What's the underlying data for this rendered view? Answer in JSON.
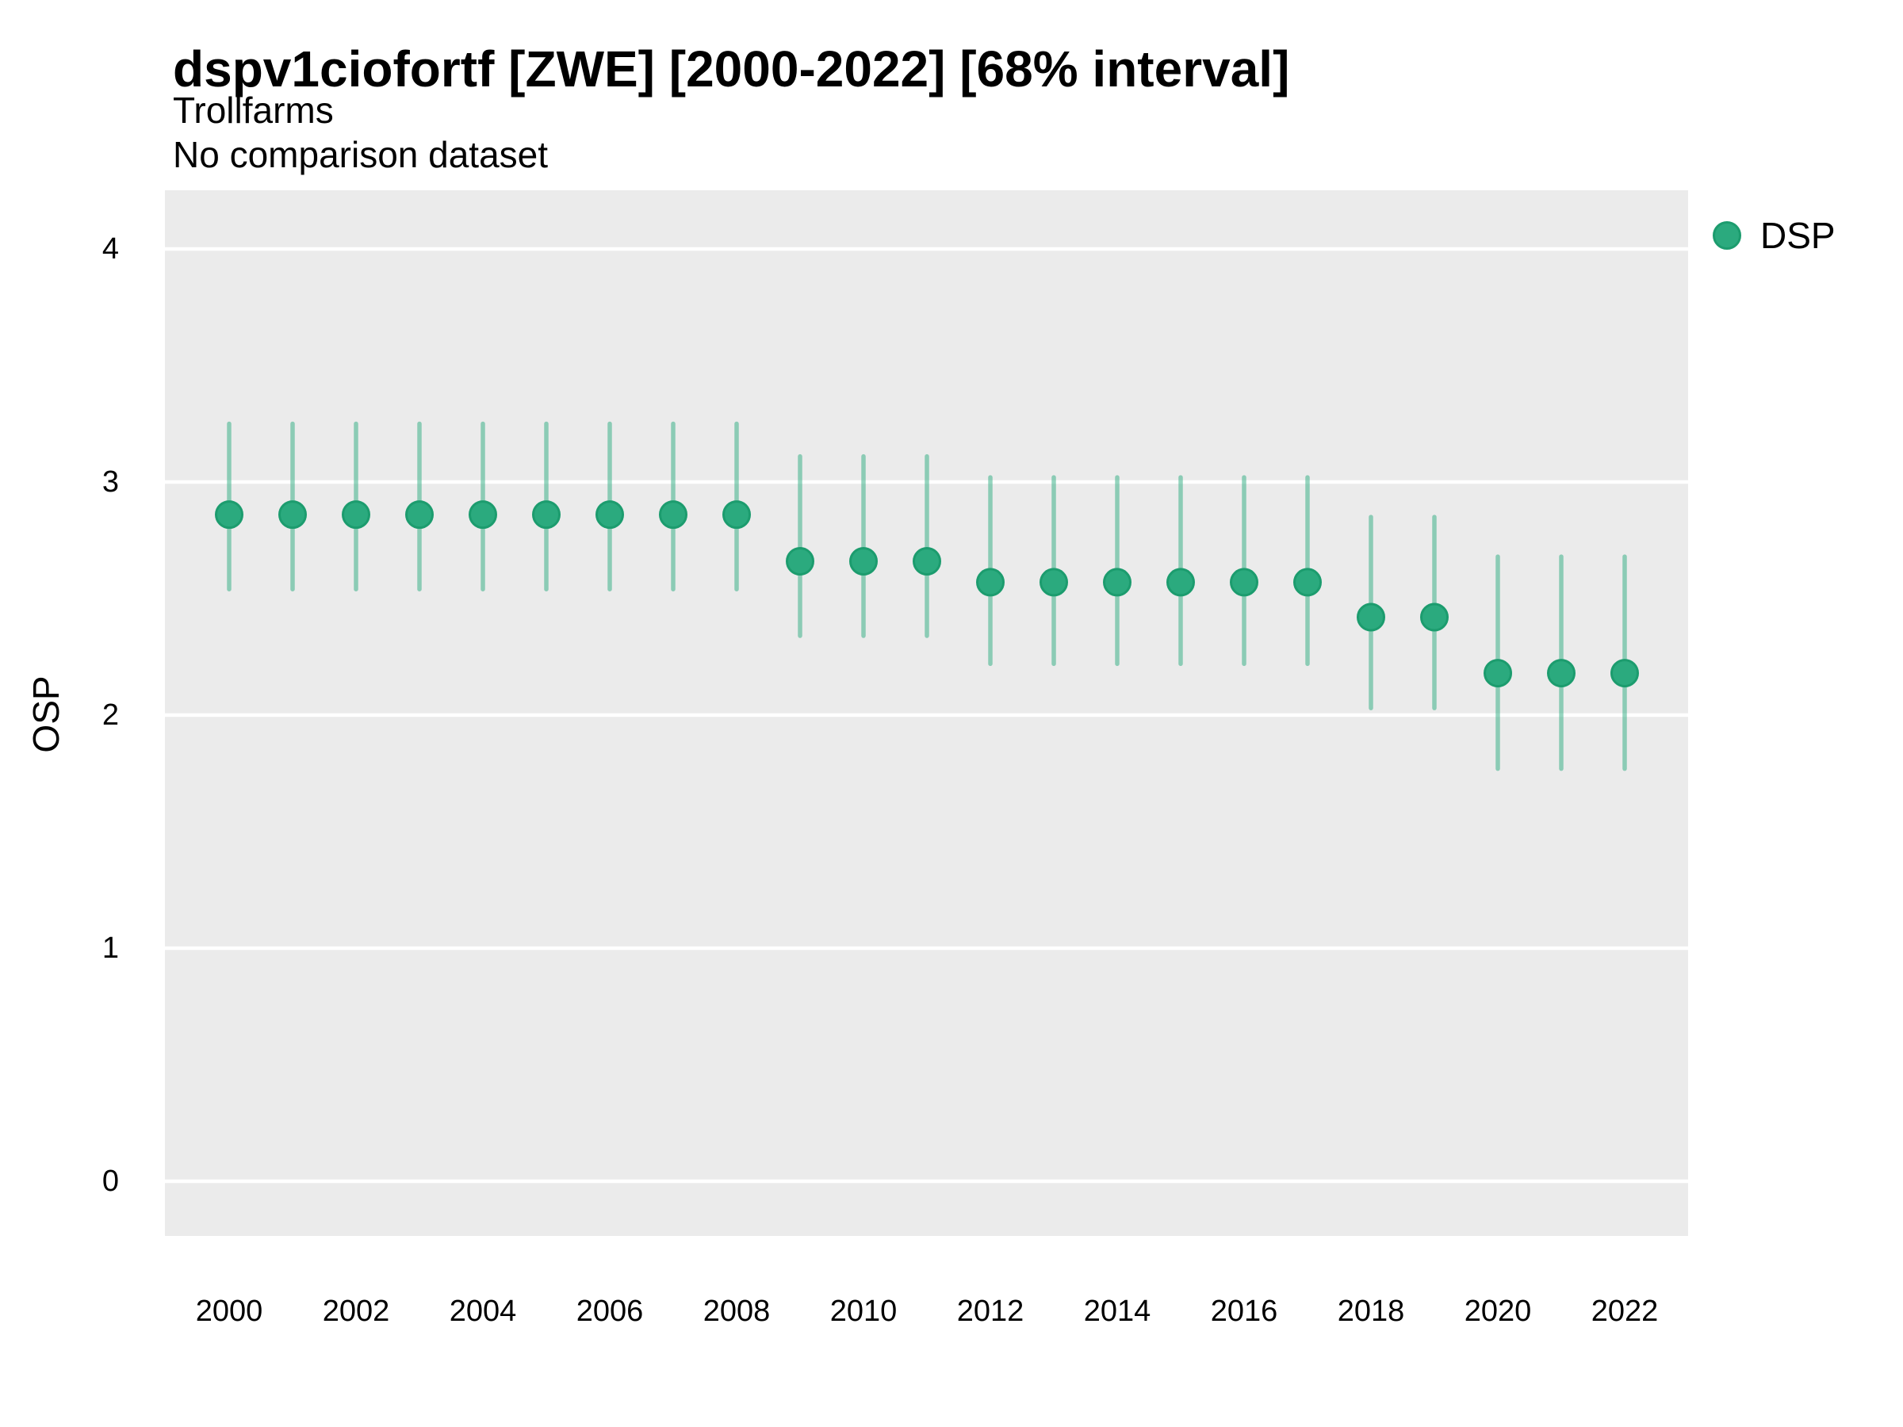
{
  "header": {
    "title": "dspv1ciofortf [ZWE] [2000-2022] [68% interval]",
    "subtitle": "Trollfarms",
    "comparison_note": "No comparison dataset"
  },
  "legend": {
    "items": [
      {
        "label": "DSP",
        "swatch_color": "#2BAA7E"
      }
    ]
  },
  "axes": {
    "y_label": "OSP",
    "y_ticks": [
      0,
      1,
      2,
      3,
      4
    ],
    "x_tick_labels": [
      "2000",
      "2002",
      "2004",
      "2006",
      "2008",
      "2010",
      "2012",
      "2014",
      "2016",
      "2018",
      "2020",
      "2022"
    ]
  },
  "chart_data": {
    "type": "scatter",
    "title": "dspv1ciofortf [ZWE] [2000-2022] [68% interval]",
    "subtitle": "Trollfarms",
    "note": "No comparison dataset",
    "xlabel": "",
    "ylabel": "OSP",
    "ylim": [
      0,
      4
    ],
    "xlim": [
      2000,
      2022
    ],
    "interval": "68%",
    "grid": "major-horizontal-white-on-gray",
    "legend_position": "top-right",
    "series": [
      {
        "name": "DSP",
        "point_color": "#2BAA7E",
        "point_edge_color": "#1C9C6E",
        "interval_color": "rgba(44,171,128,0.5)",
        "points": [
          {
            "year": 2000,
            "value": 2.86,
            "lo": 2.54,
            "hi": 3.25
          },
          {
            "year": 2001,
            "value": 2.86,
            "lo": 2.54,
            "hi": 3.25
          },
          {
            "year": 2002,
            "value": 2.86,
            "lo": 2.54,
            "hi": 3.25
          },
          {
            "year": 2003,
            "value": 2.86,
            "lo": 2.54,
            "hi": 3.25
          },
          {
            "year": 2004,
            "value": 2.86,
            "lo": 2.54,
            "hi": 3.25
          },
          {
            "year": 2005,
            "value": 2.86,
            "lo": 2.54,
            "hi": 3.25
          },
          {
            "year": 2006,
            "value": 2.86,
            "lo": 2.54,
            "hi": 3.25
          },
          {
            "year": 2007,
            "value": 2.86,
            "lo": 2.54,
            "hi": 3.25
          },
          {
            "year": 2008,
            "value": 2.86,
            "lo": 2.54,
            "hi": 3.25
          },
          {
            "year": 2009,
            "value": 2.66,
            "lo": 2.34,
            "hi": 3.11
          },
          {
            "year": 2010,
            "value": 2.66,
            "lo": 2.34,
            "hi": 3.11
          },
          {
            "year": 2011,
            "value": 2.66,
            "lo": 2.34,
            "hi": 3.11
          },
          {
            "year": 2012,
            "value": 2.57,
            "lo": 2.22,
            "hi": 3.02
          },
          {
            "year": 2013,
            "value": 2.57,
            "lo": 2.22,
            "hi": 3.02
          },
          {
            "year": 2014,
            "value": 2.57,
            "lo": 2.22,
            "hi": 3.02
          },
          {
            "year": 2015,
            "value": 2.57,
            "lo": 2.22,
            "hi": 3.02
          },
          {
            "year": 2016,
            "value": 2.57,
            "lo": 2.22,
            "hi": 3.02
          },
          {
            "year": 2017,
            "value": 2.57,
            "lo": 2.22,
            "hi": 3.02
          },
          {
            "year": 2018,
            "value": 2.42,
            "lo": 2.03,
            "hi": 2.85
          },
          {
            "year": 2019,
            "value": 2.42,
            "lo": 2.03,
            "hi": 2.85
          },
          {
            "year": 2020,
            "value": 2.18,
            "lo": 1.77,
            "hi": 2.68
          },
          {
            "year": 2021,
            "value": 2.18,
            "lo": 1.77,
            "hi": 2.68
          },
          {
            "year": 2022,
            "value": 2.18,
            "lo": 1.77,
            "hi": 2.68
          }
        ]
      }
    ]
  },
  "colors": {
    "panel_bg": "#EBEBEB",
    "gridline": "#FFFFFF",
    "point_fill": "#2BAA7E",
    "point_stroke": "#1C9C6E",
    "interval_bar": "rgba(44,171,128,0.5)",
    "text": "#000000"
  }
}
